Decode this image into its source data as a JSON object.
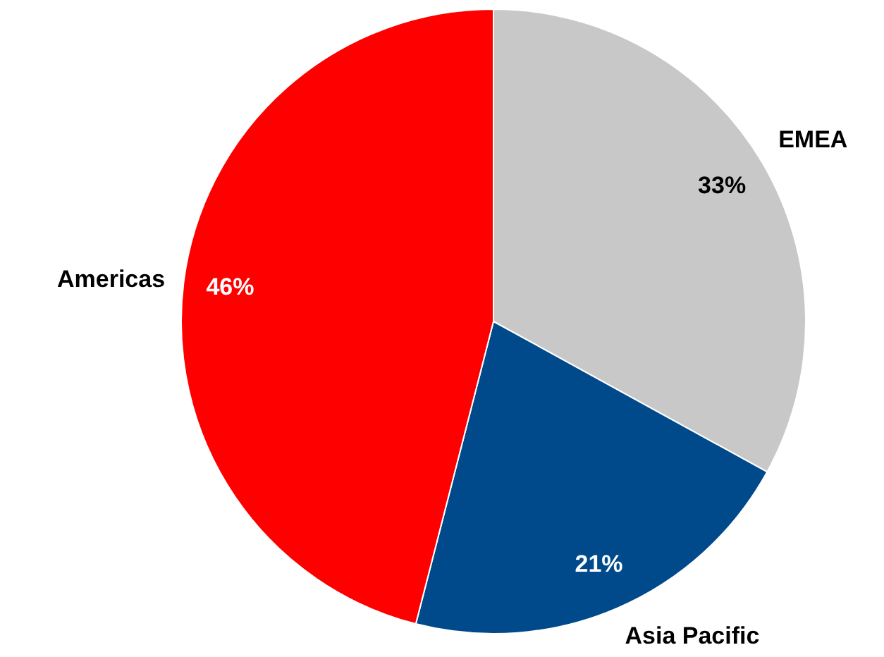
{
  "chart_data": {
    "type": "pie",
    "categories": [
      "EMEA",
      "Asia Pacific",
      "Americas"
    ],
    "values": [
      33,
      21,
      46
    ],
    "colors": [
      "#c8c8c8",
      "#004a8c",
      "#ff0000"
    ],
    "value_labels": [
      "33%",
      "21%",
      "46%"
    ],
    "legend": false
  }
}
